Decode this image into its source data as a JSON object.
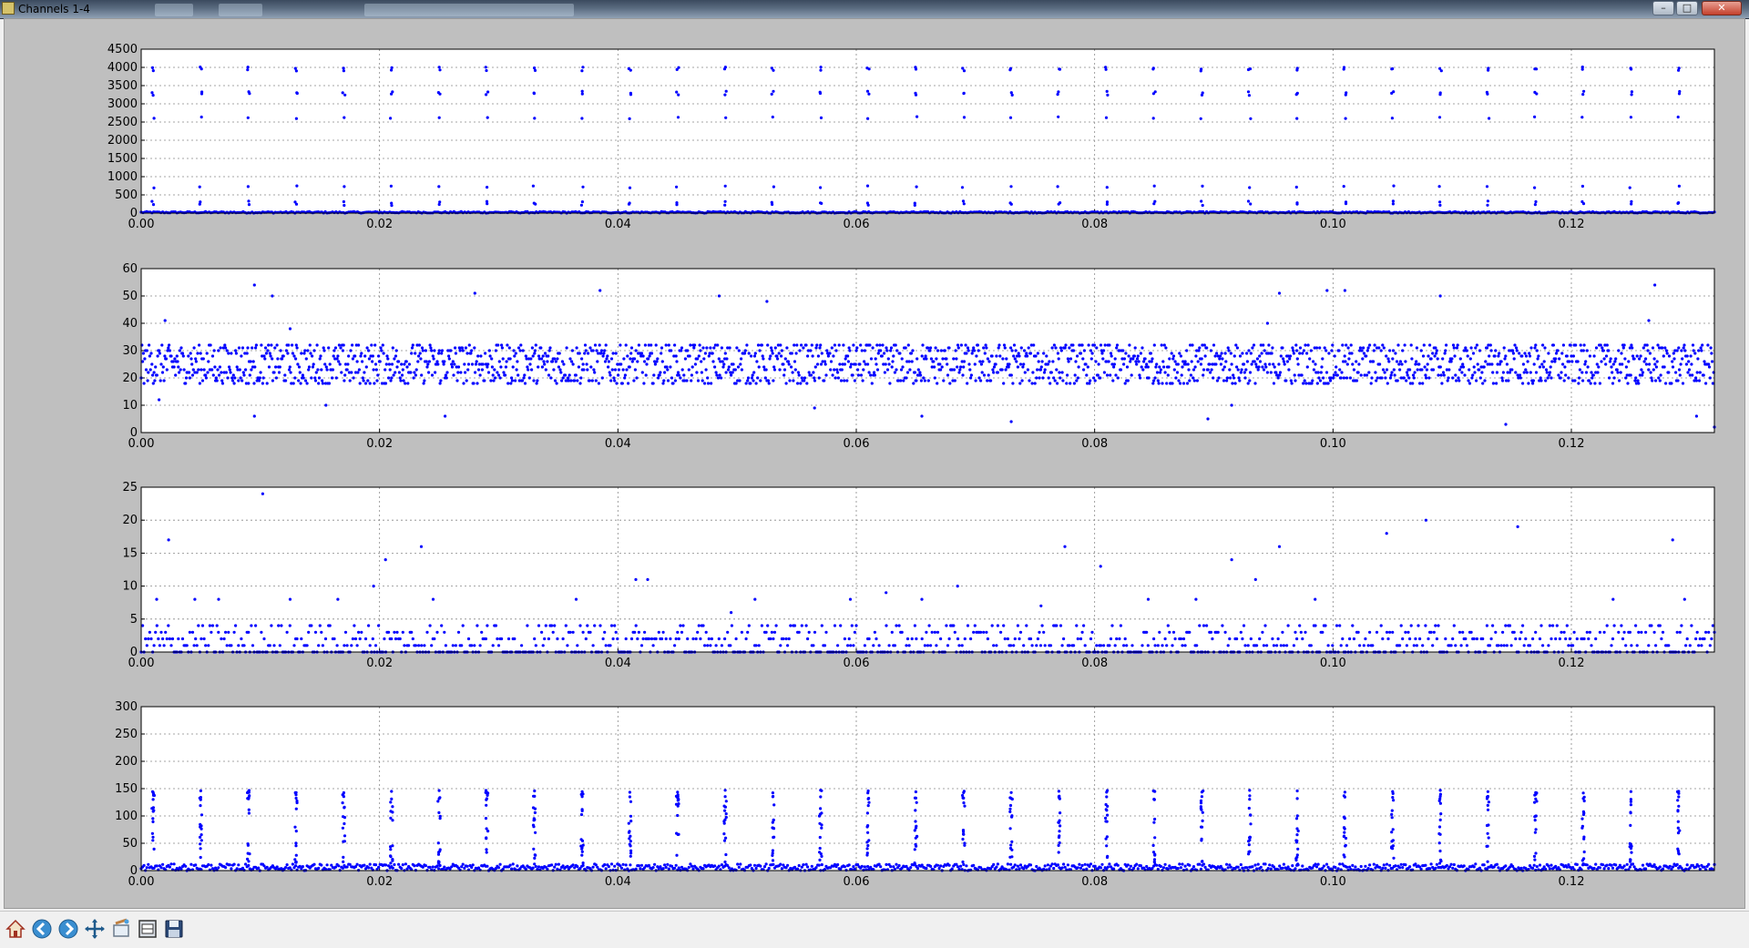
{
  "window": {
    "title": "Channels 1-4",
    "buttons": {
      "minimize": "–",
      "maximize": "□",
      "close": "✕"
    }
  },
  "toolbar": {
    "items": [
      {
        "name": "home",
        "icon": "home-icon"
      },
      {
        "name": "back",
        "icon": "back-arrow-icon"
      },
      {
        "name": "forward",
        "icon": "forward-arrow-icon"
      },
      {
        "name": "pan",
        "icon": "pan-move-icon"
      },
      {
        "name": "zoom",
        "icon": "zoom-rect-icon"
      },
      {
        "name": "subplots",
        "icon": "configure-subplots-icon"
      },
      {
        "name": "save",
        "icon": "save-floppy-icon"
      }
    ]
  },
  "colors": {
    "marker": "#0000ff",
    "grid": "#888888",
    "figure_bg": "#bfbfbf",
    "axes_bg": "#ffffff"
  },
  "chart_data": [
    {
      "type": "scatter",
      "title": "",
      "xlabel": "",
      "ylabel": "",
      "xlim": [
        0.0,
        0.132
      ],
      "ylim": [
        0,
        4500
      ],
      "xticks": [
        "0.00",
        "0.02",
        "0.04",
        "0.06",
        "0.08",
        "0.10",
        "0.12"
      ],
      "yticks": [
        "0",
        "500",
        "1000",
        "1500",
        "2000",
        "2500",
        "3000",
        "3500",
        "4000",
        "4500"
      ],
      "grid": true,
      "pattern": {
        "period": 0.004,
        "phase": 0.001,
        "spike_values": [
          3980,
          3930,
          3320,
          3260,
          2620,
          720,
          300,
          240
        ],
        "baseline_max": 40
      }
    },
    {
      "type": "scatter",
      "title": "",
      "xlabel": "",
      "ylabel": "",
      "xlim": [
        0.0,
        0.132
      ],
      "ylim": [
        0,
        60
      ],
      "xticks": [
        "0.00",
        "0.02",
        "0.04",
        "0.06",
        "0.08",
        "0.10",
        "0.12"
      ],
      "yticks": [
        "0",
        "10",
        "20",
        "30",
        "40",
        "50",
        "60"
      ],
      "grid": true,
      "pattern": {
        "band_low": 18,
        "band_high": 32
      },
      "outliers": [
        [
          0.002,
          41
        ],
        [
          0.0095,
          54
        ],
        [
          0.011,
          50
        ],
        [
          0.0125,
          38
        ],
        [
          0.028,
          51
        ],
        [
          0.0385,
          52
        ],
        [
          0.0485,
          50
        ],
        [
          0.0525,
          48
        ],
        [
          0.0945,
          40
        ],
        [
          0.0955,
          51
        ],
        [
          0.0995,
          52
        ],
        [
          0.101,
          52
        ],
        [
          0.109,
          50
        ],
        [
          0.1265,
          41
        ],
        [
          0.127,
          54
        ],
        [
          0.0095,
          6
        ],
        [
          0.0155,
          10
        ],
        [
          0.0255,
          6
        ],
        [
          0.0655,
          6
        ],
        [
          0.073,
          4
        ],
        [
          0.0895,
          5
        ],
        [
          0.1145,
          3
        ],
        [
          0.1305,
          6
        ],
        [
          0.132,
          2
        ],
        [
          0.0015,
          12
        ],
        [
          0.0565,
          9
        ],
        [
          0.0915,
          10
        ]
      ]
    },
    {
      "type": "scatter",
      "title": "",
      "xlabel": "",
      "ylabel": "",
      "xlim": [
        0.0,
        0.132
      ],
      "ylim": [
        0,
        25
      ],
      "xticks": [
        "0.00",
        "0.02",
        "0.04",
        "0.06",
        "0.08",
        "0.10",
        "0.12"
      ],
      "yticks": [
        "0",
        "5",
        "10",
        "15",
        "20",
        "25"
      ],
      "grid": true,
      "pattern": {
        "baseline_levels": [
          0,
          1,
          2,
          3,
          4
        ]
      },
      "outliers": [
        [
          0.0023,
          17
        ],
        [
          0.0102,
          24
        ],
        [
          0.0235,
          16
        ],
        [
          0.0195,
          10
        ],
        [
          0.0205,
          14
        ],
        [
          0.0415,
          11
        ],
        [
          0.0425,
          11
        ],
        [
          0.0495,
          6
        ],
        [
          0.0625,
          9
        ],
        [
          0.0685,
          10
        ],
        [
          0.0775,
          16
        ],
        [
          0.0805,
          13
        ],
        [
          0.0915,
          14
        ],
        [
          0.0935,
          11
        ],
        [
          0.0955,
          16
        ],
        [
          0.1045,
          18
        ],
        [
          0.1078,
          20
        ],
        [
          0.1155,
          19
        ],
        [
          0.1285,
          17
        ],
        [
          0.0013,
          8
        ],
        [
          0.0045,
          8
        ],
        [
          0.0065,
          8
        ],
        [
          0.0125,
          8
        ],
        [
          0.0165,
          8
        ],
        [
          0.0245,
          8
        ],
        [
          0.0365,
          8
        ],
        [
          0.0515,
          8
        ],
        [
          0.0595,
          8
        ],
        [
          0.0655,
          8
        ],
        [
          0.0755,
          7
        ],
        [
          0.0845,
          8
        ],
        [
          0.0885,
          8
        ],
        [
          0.0985,
          8
        ],
        [
          0.1235,
          8
        ],
        [
          0.1295,
          8
        ]
      ]
    },
    {
      "type": "scatter",
      "title": "",
      "xlabel": "",
      "ylabel": "",
      "xlim": [
        0.0,
        0.132
      ],
      "ylim": [
        0,
        300
      ],
      "xticks": [
        "0.00",
        "0.02",
        "0.04",
        "0.06",
        "0.08",
        "0.10",
        "0.12"
      ],
      "yticks": [
        "0",
        "50",
        "100",
        "150",
        "200",
        "250",
        "300"
      ],
      "grid": true,
      "pattern": {
        "period": 0.004,
        "phase": 0.001,
        "spike_max": 148,
        "baseline_max": 12
      }
    }
  ]
}
